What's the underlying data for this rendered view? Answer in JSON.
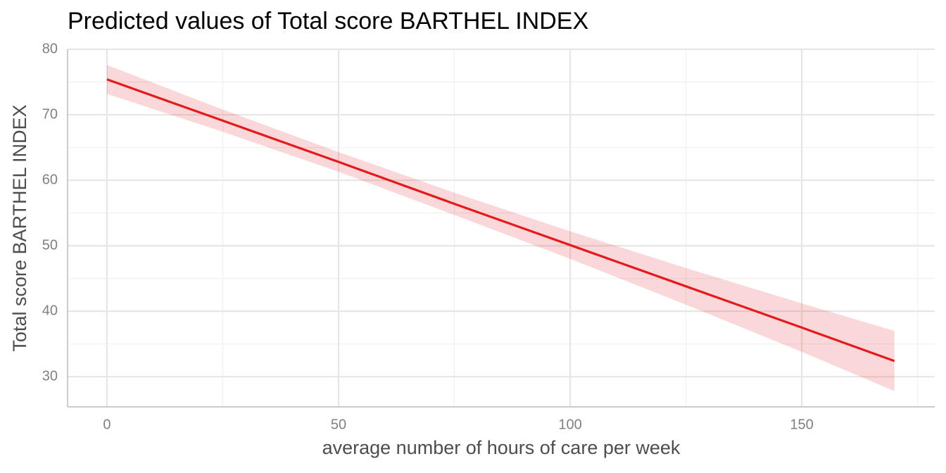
{
  "chart_data": {
    "type": "line",
    "title": "Predicted values of Total score BARTHEL INDEX",
    "x_label": "average number of hours of care per week",
    "y_label": "Total score BARTHEL INDEX",
    "x": [
      0,
      25,
      50,
      75,
      100,
      125,
      150,
      170
    ],
    "values": [
      75.4,
      69.1,
      62.8,
      56.4,
      50.1,
      43.8,
      37.5,
      32.4
    ],
    "ci_low": [
      73.2,
      67.4,
      61.3,
      54.7,
      48.0,
      41.0,
      33.8,
      27.8
    ],
    "ci_high": [
      77.6,
      70.8,
      64.3,
      58.1,
      52.2,
      46.6,
      41.2,
      37.0
    ],
    "color": "#e41a1c",
    "xlim": [
      -8.5,
      178.7
    ],
    "ylim": [
      25.4,
      80
    ],
    "xticks": [
      0,
      50,
      100,
      150
    ],
    "yticks": [
      30,
      40,
      50,
      60,
      70,
      80
    ],
    "xminor": [
      25,
      75,
      125,
      175
    ],
    "yminor": [
      35,
      45,
      55,
      65,
      75
    ],
    "grid": true
  }
}
